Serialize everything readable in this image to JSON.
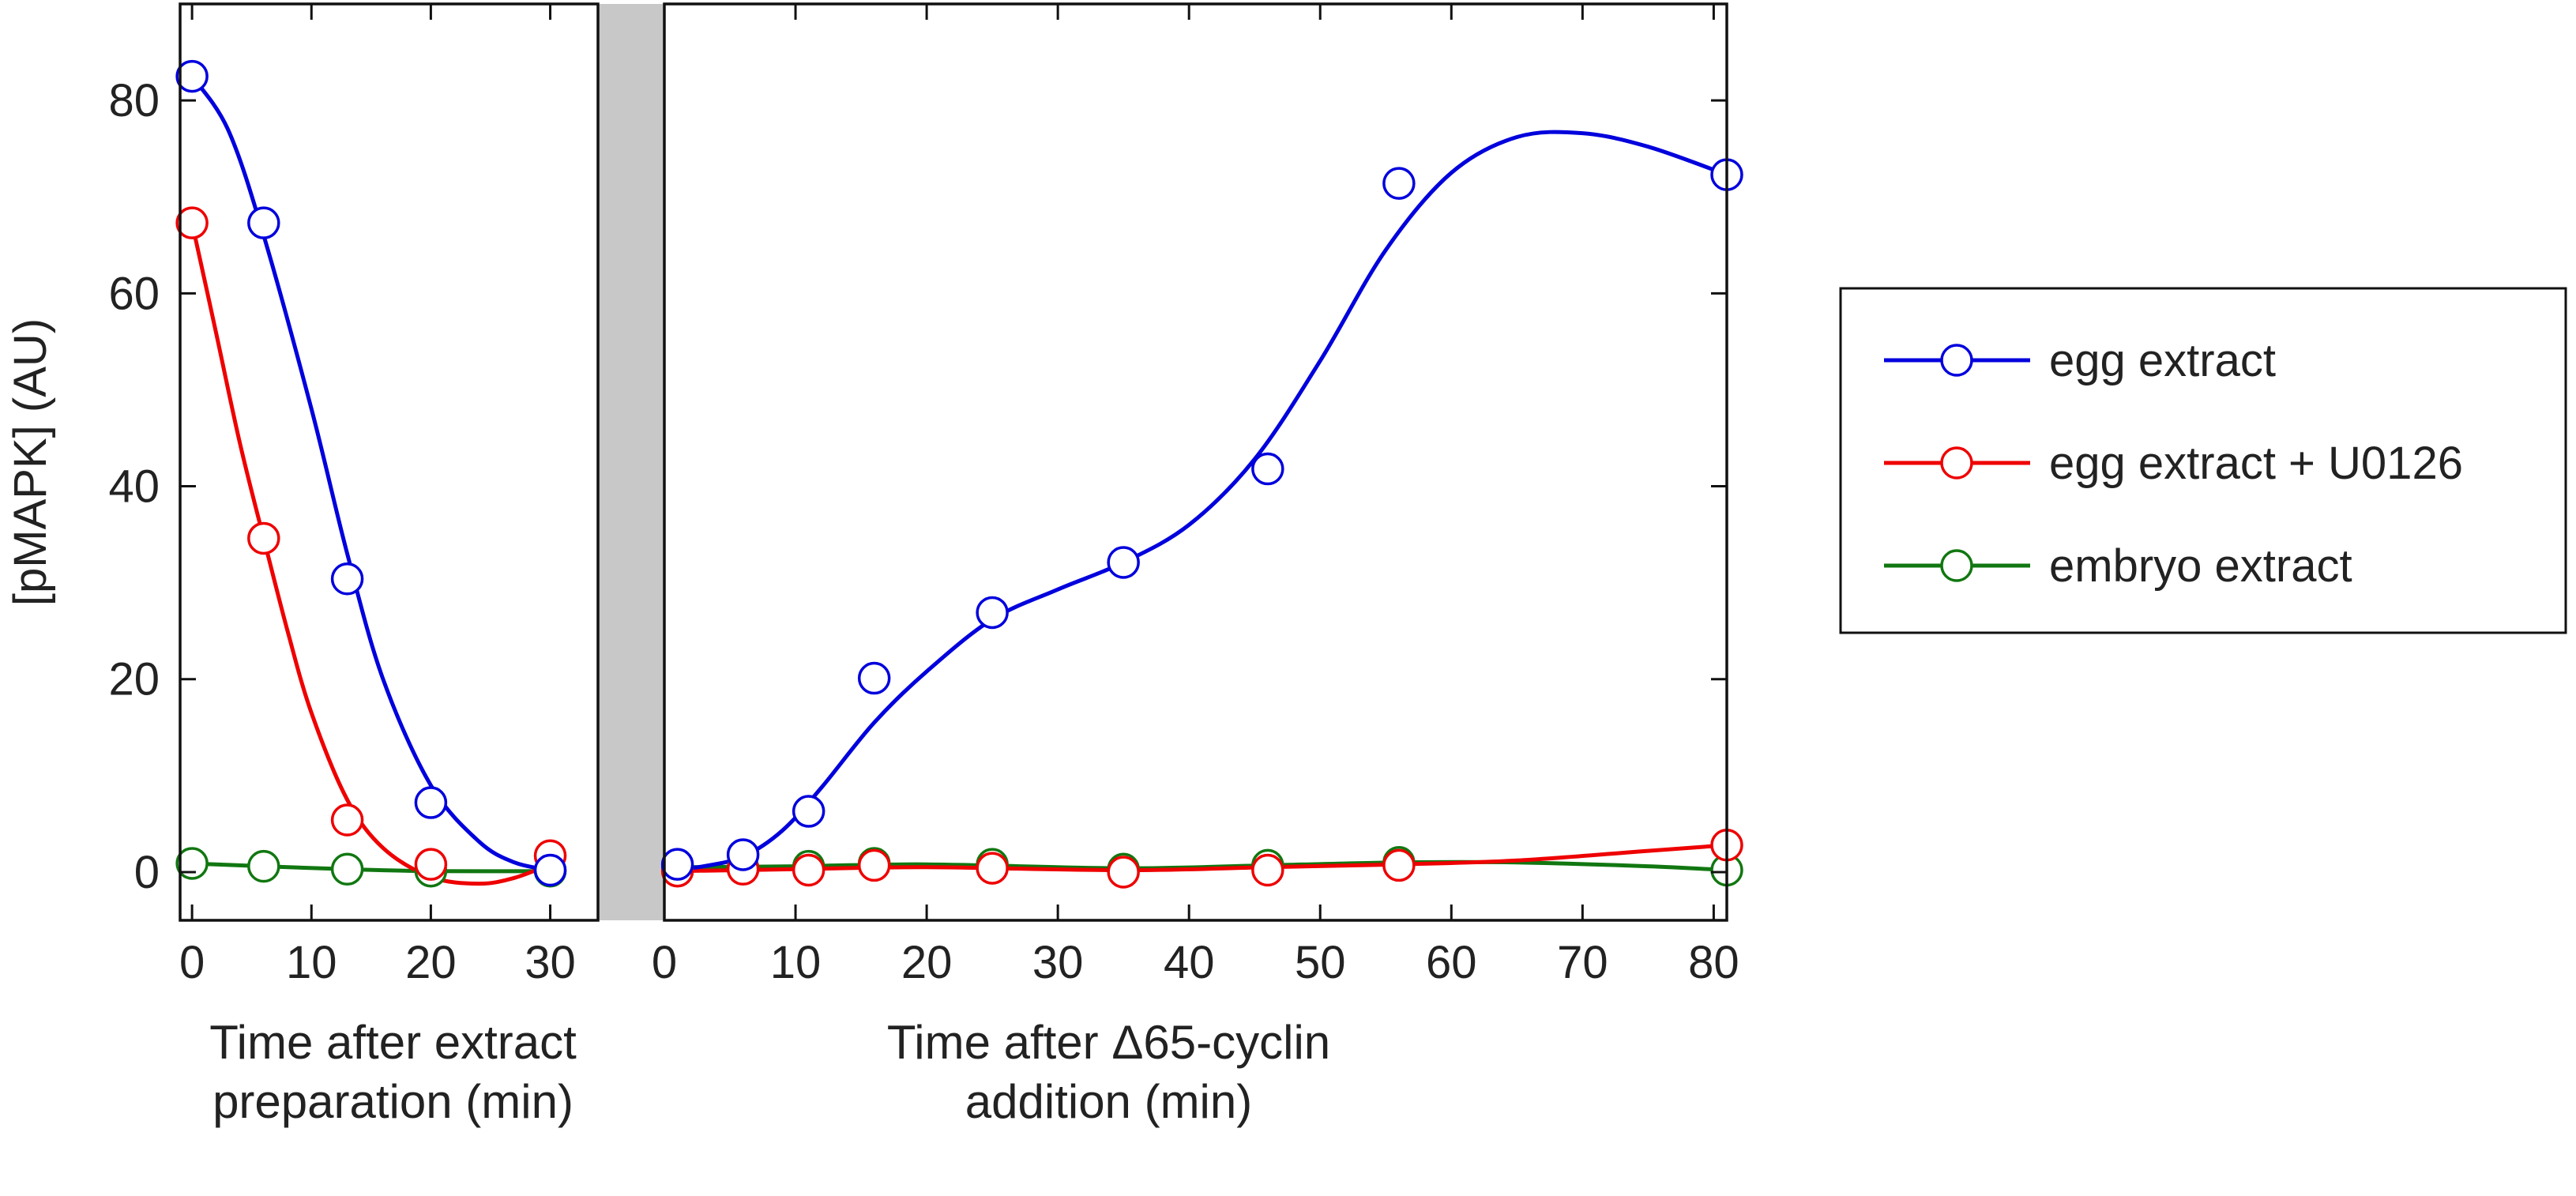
{
  "chart_data": {
    "type": "line",
    "ylabel": "[pMAPK] (AU)",
    "ylim": [
      -5,
      90
    ],
    "yticks": [
      0,
      20,
      40,
      60,
      80
    ],
    "legend_position": "right",
    "panels": [
      {
        "id": "left",
        "xlabel_lines": [
          "Time after extract",
          "preparation (min)"
        ],
        "xlim": [
          -1,
          34
        ],
        "xticks": [
          0,
          10,
          20,
          30
        ]
      },
      {
        "id": "right",
        "xlabel_lines": [
          "Time after Δ65-cyclin",
          "addition (min)"
        ],
        "xlim": [
          0,
          81
        ],
        "xticks": [
          0,
          10,
          20,
          30,
          40,
          50,
          60,
          70,
          80
        ]
      }
    ],
    "series": [
      {
        "name": "egg extract",
        "color": "#0000dd",
        "left": [
          [
            0,
            82.5
          ],
          [
            6,
            67.3
          ],
          [
            13,
            30.4
          ],
          [
            20,
            7.2
          ],
          [
            30,
            0.2
          ]
        ],
        "right": [
          [
            1,
            0.8
          ],
          [
            6,
            1.8
          ],
          [
            11,
            6.3
          ],
          [
            16,
            20.1
          ],
          [
            25,
            26.9
          ],
          [
            35,
            32.1
          ],
          [
            46,
            41.8
          ],
          [
            56,
            71.4
          ],
          [
            81,
            72.3
          ]
        ],
        "fit_left": [
          [
            0,
            82.5
          ],
          [
            3,
            77.0
          ],
          [
            6,
            66.0
          ],
          [
            10,
            48.0
          ],
          [
            13,
            33.0
          ],
          [
            16,
            20.0
          ],
          [
            20,
            9.0
          ],
          [
            24,
            3.2
          ],
          [
            27,
            1.0
          ],
          [
            30,
            0.2
          ]
        ],
        "fit_right": [
          [
            1,
            0.3
          ],
          [
            3,
            0.6
          ],
          [
            6,
            1.6
          ],
          [
            9,
            4.3
          ],
          [
            12,
            8.8
          ],
          [
            16,
            15.5
          ],
          [
            20,
            20.8
          ],
          [
            25,
            26.2
          ],
          [
            30,
            29.3
          ],
          [
            35,
            32.1
          ],
          [
            40,
            36.0
          ],
          [
            45,
            42.8
          ],
          [
            50,
            53.0
          ],
          [
            55,
            64.5
          ],
          [
            60,
            72.5
          ],
          [
            65,
            76.2
          ],
          [
            70,
            76.6
          ],
          [
            75,
            75.2
          ],
          [
            81,
            72.3
          ]
        ]
      },
      {
        "name": "egg extract + U0126",
        "color": "#ee0000",
        "left": [
          [
            0,
            67.3
          ],
          [
            6,
            34.6
          ],
          [
            13,
            5.4
          ],
          [
            20,
            0.8
          ],
          [
            30,
            1.7
          ]
        ],
        "right": [
          [
            1,
            0.1
          ],
          [
            6,
            0.3
          ],
          [
            11,
            0.2
          ],
          [
            16,
            0.7
          ],
          [
            25,
            0.4
          ],
          [
            35,
            0.0
          ],
          [
            46,
            0.2
          ],
          [
            56,
            0.7
          ],
          [
            81,
            2.8
          ]
        ],
        "fit_left": [
          [
            0,
            67.3
          ],
          [
            2,
            56.0
          ],
          [
            4,
            44.5
          ],
          [
            6,
            34.6
          ],
          [
            8,
            25.0
          ],
          [
            10,
            16.5
          ],
          [
            13,
            7.5
          ],
          [
            16,
            2.5
          ],
          [
            20,
            -0.5
          ],
          [
            24,
            -1.2
          ],
          [
            27,
            -0.6
          ],
          [
            30,
            0.8
          ]
        ],
        "fit_right": [
          [
            1,
            0.1
          ],
          [
            10,
            0.3
          ],
          [
            20,
            0.5
          ],
          [
            35,
            0.2
          ],
          [
            46,
            0.5
          ],
          [
            56,
            0.8
          ],
          [
            65,
            1.2
          ],
          [
            75,
            2.2
          ],
          [
            81,
            2.8
          ]
        ]
      },
      {
        "name": "embryo extract",
        "color": "#117711",
        "left": [
          [
            0,
            0.9
          ],
          [
            6,
            0.6
          ],
          [
            13,
            0.3
          ],
          [
            20,
            0.1
          ],
          [
            30,
            0.1
          ]
        ],
        "right": [
          [
            1,
            0.5
          ],
          [
            6,
            0.4
          ],
          [
            11,
            0.6
          ],
          [
            16,
            0.9
          ],
          [
            25,
            0.8
          ],
          [
            35,
            0.3
          ],
          [
            46,
            0.7
          ],
          [
            56,
            1.0
          ],
          [
            81,
            0.2
          ]
        ],
        "fit_left": [
          [
            0,
            0.9
          ],
          [
            6,
            0.6
          ],
          [
            13,
            0.3
          ],
          [
            20,
            0.1
          ],
          [
            30,
            0.1
          ]
        ],
        "fit_right": [
          [
            1,
            0.5
          ],
          [
            10,
            0.6
          ],
          [
            20,
            0.8
          ],
          [
            35,
            0.4
          ],
          [
            46,
            0.7
          ],
          [
            56,
            1.0
          ],
          [
            65,
            1.0
          ],
          [
            75,
            0.6
          ],
          [
            81,
            0.2
          ]
        ]
      }
    ]
  }
}
